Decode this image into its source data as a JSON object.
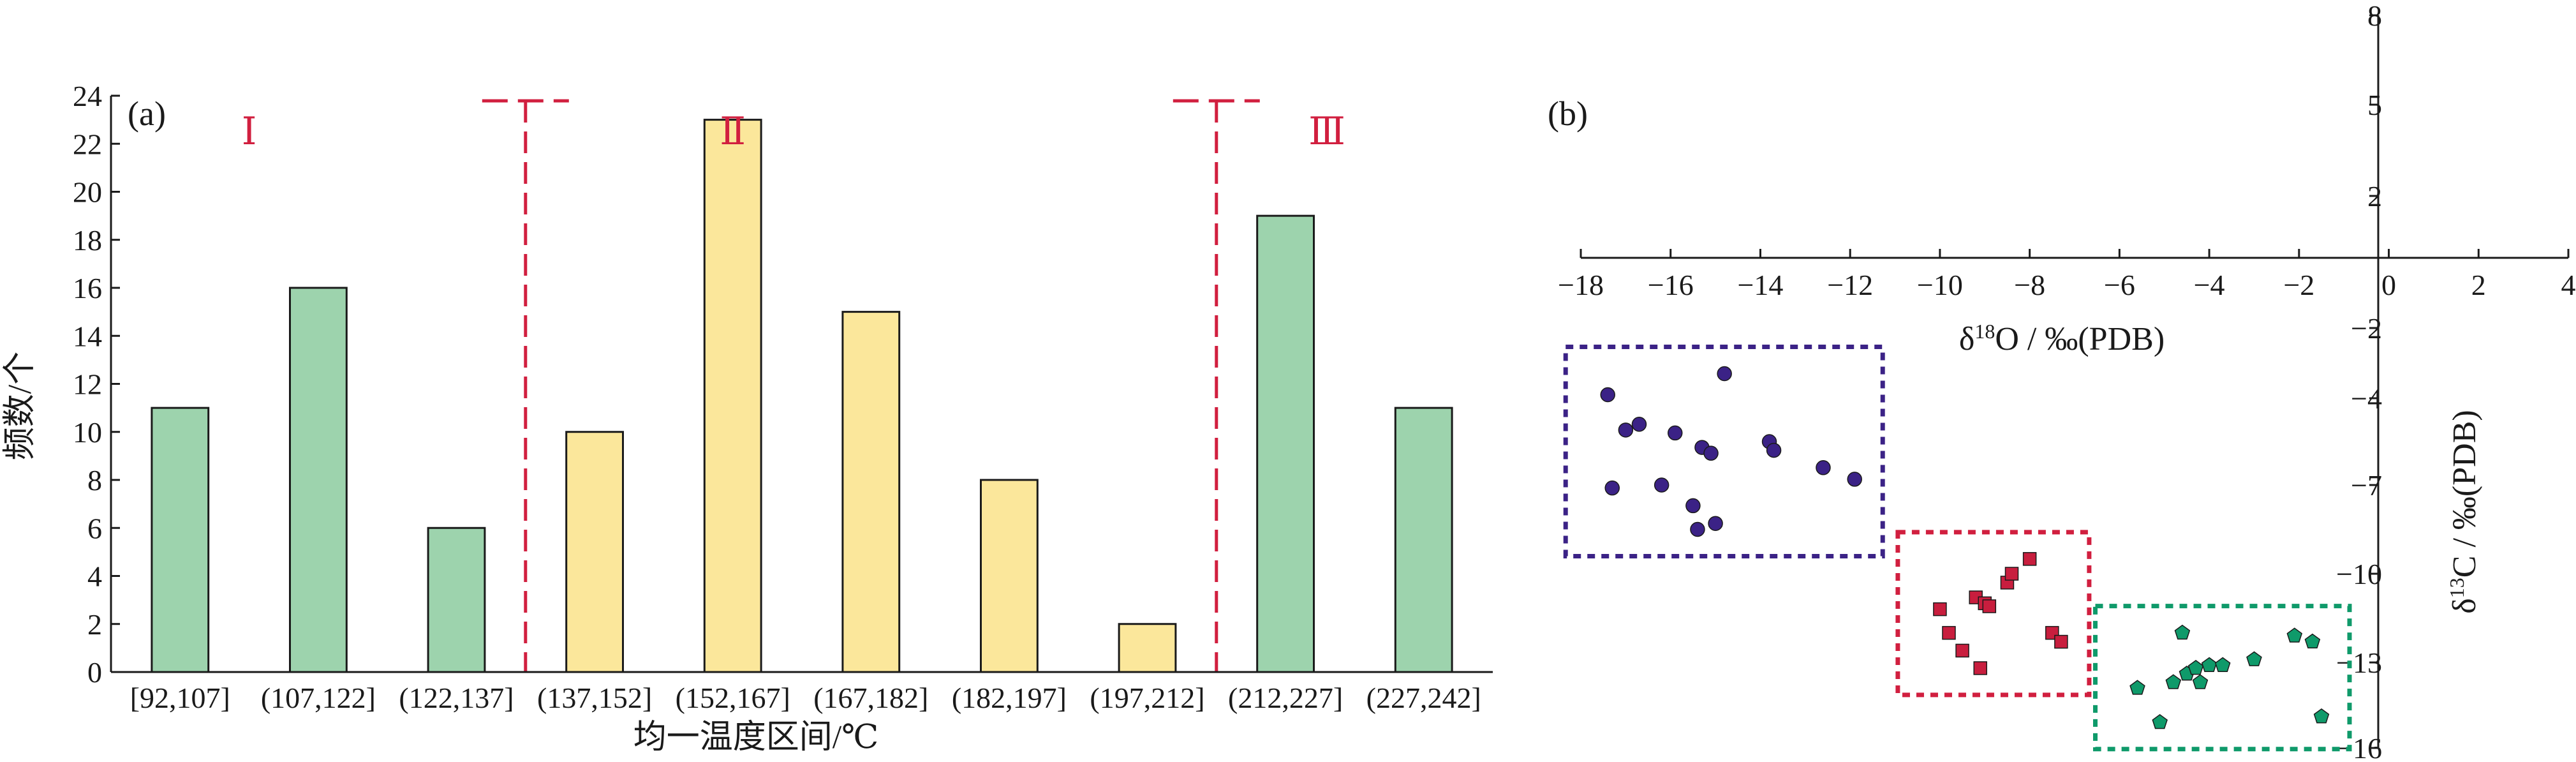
{
  "chart_data": [
    {
      "type": "bar",
      "panel_label": "(a)",
      "xlabel": "均一温度区间/℃",
      "ylabel": "频数/个",
      "ylim": [
        0,
        24
      ],
      "yticks": [
        0,
        2,
        4,
        6,
        8,
        10,
        12,
        14,
        16,
        18,
        20,
        22,
        24
      ],
      "categories": [
        "[92,107]",
        "(107,122]",
        "(122,137]",
        "(137,152]",
        "(152,167]",
        "(167,182]",
        "(182,197]",
        "(197,212]",
        "(212,227]",
        "(227,242]"
      ],
      "values": [
        11,
        16,
        6,
        10,
        23,
        15,
        8,
        2,
        19,
        11
      ],
      "bar_colors": [
        "#9dd3ad",
        "#9dd3ad",
        "#9dd3ad",
        "#fbe79b",
        "#fbe79b",
        "#fbe79b",
        "#fbe79b",
        "#fbe79b",
        "#9dd3ad",
        "#9dd3ad"
      ],
      "zones": [
        {
          "label": "Ⅰ",
          "range": "[92,107]–(122,137]"
        },
        {
          "label": "Ⅱ",
          "range": "(137,152]–(197,212]"
        },
        {
          "label": "Ⅲ",
          "range": "(212,227]–(227,242]"
        }
      ],
      "divider_color": "#d11f3f",
      "grid": false
    },
    {
      "type": "scatter",
      "panel_label": "(b)",
      "xlabel": "δ18O / ‰(PDB)",
      "ylabel": "δ13C / ‰(PDB)",
      "xlim": [
        -18,
        4
      ],
      "ylim": [
        -16,
        8
      ],
      "xticks": [
        -18,
        -16,
        -14,
        -12,
        -10,
        -8,
        -6,
        -4,
        -2,
        0,
        2,
        4
      ],
      "yticks": [
        8,
        5,
        2,
        -2,
        -4,
        -7,
        -10,
        -13,
        -16
      ],
      "grid": false,
      "series": [
        {
          "marker": "circle",
          "color": "#3b2286",
          "box_color": "#3b2286",
          "points": [
            [
              -17.4,
              -3.9
            ],
            [
              -17.0,
              -5.1
            ],
            [
              -16.7,
              -4.9
            ],
            [
              -15.9,
              -5.2
            ],
            [
              -14.8,
              -3.3
            ],
            [
              -15.3,
              -5.7
            ],
            [
              -15.1,
              -5.9
            ],
            [
              -13.8,
              -5.5
            ],
            [
              -13.7,
              -5.8
            ],
            [
              -12.6,
              -6.4
            ],
            [
              -11.9,
              -6.8
            ],
            [
              -17.3,
              -7.1
            ],
            [
              -16.2,
              -7.0
            ],
            [
              -15.5,
              -7.7
            ],
            [
              -15.4,
              -8.5
            ],
            [
              -15.0,
              -8.3
            ]
          ]
        },
        {
          "marker": "square",
          "color": "#c81e3e",
          "box_color": "#d11f3f",
          "points": [
            [
              -10.0,
              -11.2
            ],
            [
              -9.8,
              -12.0
            ],
            [
              -9.2,
              -10.8
            ],
            [
              -9.0,
              -11.0
            ],
            [
              -8.9,
              -11.1
            ],
            [
              -8.5,
              -10.3
            ],
            [
              -8.4,
              -10.0
            ],
            [
              -8.0,
              -9.5
            ],
            [
              -7.5,
              -12.0
            ],
            [
              -7.3,
              -12.3
            ],
            [
              -9.5,
              -12.6
            ],
            [
              -9.1,
              -13.2
            ]
          ]
        },
        {
          "marker": "pentagon",
          "color": "#0f9a6a",
          "box_color": "#0f9a6a",
          "points": [
            [
              -5.6,
              -13.9
            ],
            [
              -4.6,
              -12.0
            ],
            [
              -4.8,
              -13.7
            ],
            [
              -4.5,
              -13.4
            ],
            [
              -4.3,
              -13.2
            ],
            [
              -4.2,
              -13.7
            ],
            [
              -4.0,
              -13.1
            ],
            [
              -3.7,
              -13.1
            ],
            [
              -3.0,
              -12.9
            ],
            [
              -2.1,
              -12.1
            ],
            [
              -1.7,
              -12.3
            ],
            [
              -1.5,
              -14.9
            ],
            [
              -5.1,
              -15.1
            ]
          ]
        }
      ]
    }
  ]
}
